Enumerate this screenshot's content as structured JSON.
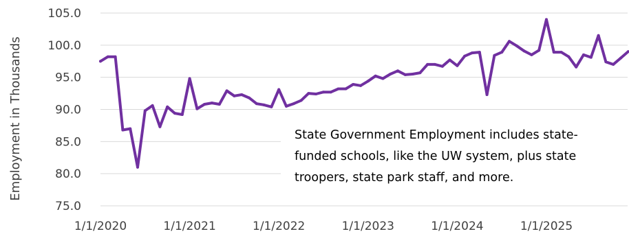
{
  "chart_data": {
    "type": "line",
    "ylabel": "Employment in Thousands",
    "xlabel": "",
    "ylim": [
      75,
      105
    ],
    "grid": true,
    "y_ticks": [
      "75.0",
      "80.0",
      "85.0",
      "90.0",
      "95.0",
      "100.0",
      "105.0"
    ],
    "x_ticks": [
      "1/1/2020",
      "1/1/2021",
      "1/1/2022",
      "1/1/2023",
      "1/1/2024",
      "1/1/2025"
    ],
    "annotation": {
      "lines": [
        "State Government Employment includes state-",
        "funded schools, like the UW system, plus state",
        "troopers, state park staff, and more."
      ]
    },
    "colors": {
      "series": "#7030a0"
    },
    "series": [
      {
        "x": [
          "2020-01",
          "2020-02",
          "2020-03",
          "2020-04",
          "2020-05",
          "2020-06",
          "2020-07",
          "2020-08",
          "2020-09",
          "2020-10",
          "2020-11",
          "2020-12",
          "2021-01",
          "2021-02",
          "2021-03",
          "2021-04",
          "2021-05",
          "2021-06",
          "2021-07",
          "2021-08",
          "2021-09",
          "2021-10",
          "2021-11",
          "2021-12",
          "2022-01",
          "2022-02",
          "2022-03",
          "2022-04",
          "2022-05",
          "2022-06",
          "2022-07",
          "2022-08",
          "2022-09",
          "2022-10",
          "2022-11",
          "2022-12",
          "2023-01",
          "2023-02",
          "2023-03",
          "2023-04",
          "2023-05",
          "2023-06",
          "2023-07",
          "2023-08",
          "2023-09",
          "2023-10",
          "2023-11",
          "2023-12",
          "2024-01",
          "2024-02",
          "2024-03",
          "2024-04",
          "2024-05",
          "2024-06",
          "2024-07",
          "2024-08",
          "2024-09",
          "2024-10",
          "2024-11",
          "2024-12",
          "2025-01",
          "2025-02",
          "2025-03",
          "2025-04",
          "2025-05",
          "2025-06",
          "2025-07",
          "2025-08",
          "2025-09",
          "2025-10",
          "2025-11",
          "2025-12"
        ],
        "values": [
          97.5,
          98.2,
          98.2,
          86.8,
          87.0,
          81.0,
          89.8,
          90.6,
          87.3,
          90.4,
          89.4,
          89.2,
          94.8,
          90.1,
          90.8,
          91.0,
          90.8,
          92.9,
          92.1,
          92.3,
          91.8,
          90.9,
          90.7,
          90.4,
          93.1,
          90.5,
          90.9,
          91.4,
          92.5,
          92.4,
          92.7,
          92.7,
          93.2,
          93.2,
          93.9,
          93.7,
          94.4,
          95.2,
          94.8,
          95.5,
          96.0,
          95.4,
          95.5,
          95.7,
          97.0,
          97.0,
          96.7,
          97.7,
          96.8,
          98.3,
          98.8,
          98.9,
          92.3,
          98.4,
          98.9,
          100.6,
          99.9,
          99.1,
          98.5,
          99.2,
          104.0,
          98.9,
          98.9,
          98.2,
          96.6,
          98.5,
          98.1,
          101.5,
          97.4,
          97.0,
          98.0,
          99.0
        ]
      }
    ]
  }
}
